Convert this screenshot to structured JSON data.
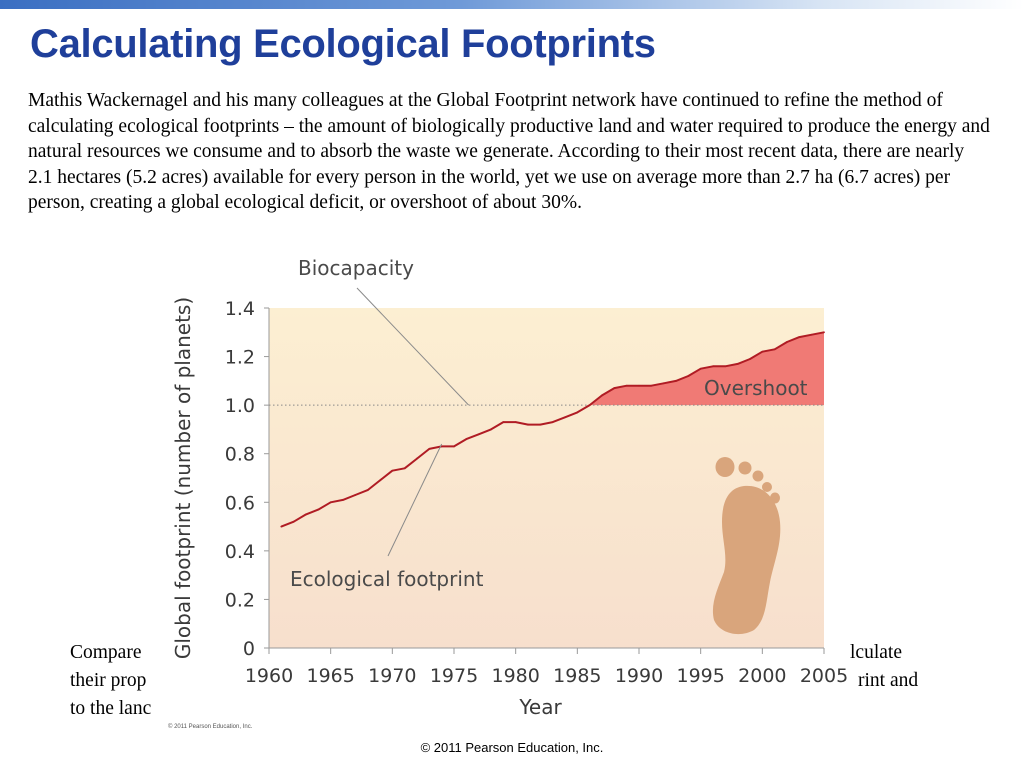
{
  "slide": {
    "title": "Calculating Ecological Footprints",
    "intro": "Mathis Wackernagel and his many colleagues at the Global Footprint network have continued to refine the method of calculating ecological footprints – the amount of biologically productive land and water required to produce the energy and natural resources we consume and to absorb the waste we generate.  According to their most recent data, there are nearly 2.1 hectares (5.2 acres) available for every person in the world, yet we use on average more than 2.7 ha (6.7 acres) per person, creating a global ecological deficit, or overshoot of about 30%.",
    "bottom_line1_left": "Compare",
    "bottom_line1_right": "lculate",
    "bottom_line2_left": "their prop",
    "bottom_line2_right": "rint and",
    "bottom_line3_left": "to the lanc",
    "figure_credit": "© 2011 Pearson Education, Inc.",
    "footer": "© 2011 Pearson Education, Inc."
  },
  "chart_data": {
    "type": "line",
    "title": "",
    "xlabel": "Year",
    "ylabel": "Global footprint (number of planets)",
    "xlim": [
      1960,
      2005
    ],
    "ylim": [
      0,
      1.4
    ],
    "x_ticks": [
      "1960",
      "1965",
      "1970",
      "1975",
      "1980",
      "1985",
      "1990",
      "1995",
      "2000",
      "2005"
    ],
    "y_ticks": [
      "0",
      "0.2",
      "0.4",
      "0.6",
      "0.8",
      "1.0",
      "1.2",
      "1.4"
    ],
    "grid": false,
    "series": [
      {
        "name": "Ecological footprint",
        "x": [
          1961,
          1962,
          1963,
          1964,
          1965,
          1966,
          1967,
          1968,
          1969,
          1970,
          1971,
          1972,
          1973,
          1974,
          1975,
          1976,
          1977,
          1978,
          1979,
          1980,
          1981,
          1982,
          1983,
          1984,
          1985,
          1986,
          1987,
          1988,
          1989,
          1990,
          1991,
          1992,
          1993,
          1994,
          1995,
          1996,
          1997,
          1998,
          1999,
          2000,
          2001,
          2002,
          2003,
          2004,
          2005
        ],
        "y": [
          0.5,
          0.52,
          0.55,
          0.57,
          0.6,
          0.61,
          0.63,
          0.65,
          0.69,
          0.73,
          0.74,
          0.78,
          0.82,
          0.83,
          0.83,
          0.86,
          0.88,
          0.9,
          0.93,
          0.93,
          0.92,
          0.92,
          0.93,
          0.95,
          0.97,
          1.0,
          1.04,
          1.07,
          1.08,
          1.08,
          1.08,
          1.09,
          1.1,
          1.12,
          1.15,
          1.16,
          1.16,
          1.17,
          1.19,
          1.22,
          1.23,
          1.26,
          1.28,
          1.29,
          1.3
        ],
        "color": "#b01c24"
      },
      {
        "name": "Biocapacity",
        "x": [
          1961,
          2005
        ],
        "y": [
          1.0,
          1.0
        ],
        "style": "dotted"
      }
    ],
    "annotations": [
      "Biocapacity",
      "Ecological footprint",
      "Overshoot"
    ],
    "colors": {
      "overshoot_fill": "#f07a75",
      "footprint_line": "#b01c24",
      "plot_bg_top": "#fcefd2",
      "plot_bg_bottom": "#f7dfcd",
      "footprint_icon": "#d9a57c"
    },
    "icon": "footprint-icon"
  }
}
